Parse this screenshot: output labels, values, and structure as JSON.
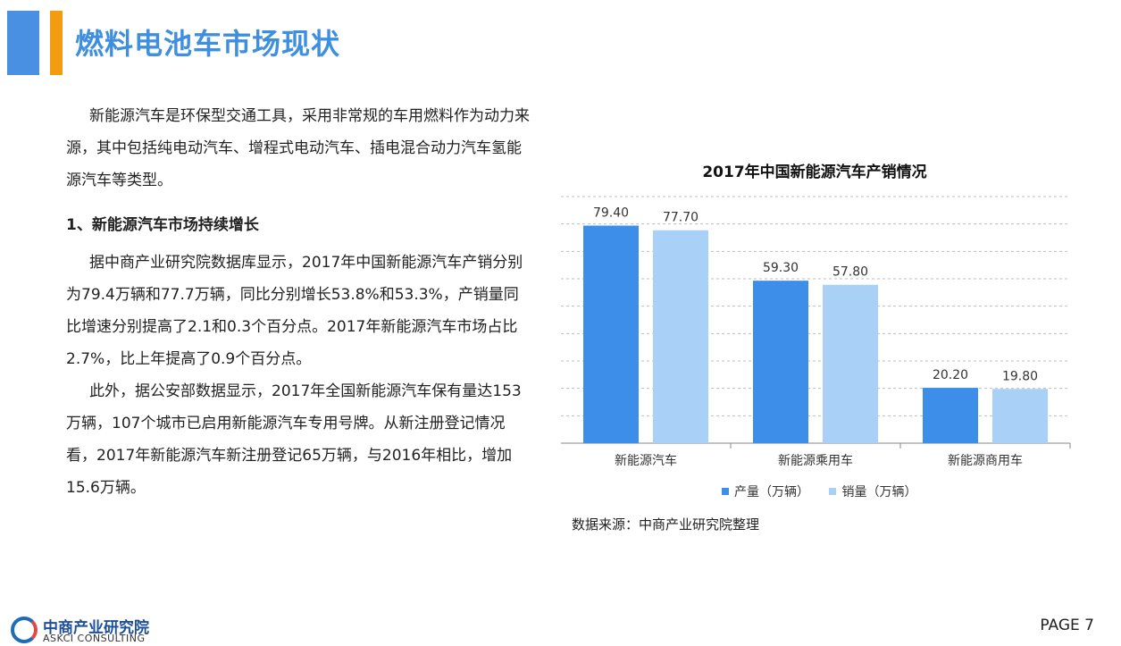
{
  "page": {
    "title": "燃料电池车市场现状",
    "page_label": "PAGE  7"
  },
  "text": {
    "intro": "新能源汽车是环保型交通工具，采用非常规的车用燃料作为动力来源，其中包括纯电动汽车、增程式电动汽车、插电混合动力汽车氢能源汽车等类型。",
    "heading1": "1、新能源汽车市场持续增长",
    "para1": "据中商产业研究院数据库显示，2017年中国新能源汽车产销分别为79.4万辆和77.7万辆，同比分别增长53.8%和53.3%，产销量同比增速分别提高了2.1和0.3个百分点。2017年新能源汽车市场占比2.7%，比上年提高了0.9个百分点。",
    "para2": "此外，据公安部数据显示，2017年全国新能源汽车保有量达153万辆，107个城市已启用新能源汽车专用号牌。从新注册登记情况看，2017年新能源汽车新注册登记65万辆，与2016年相比，增加15.6万辆。"
  },
  "source": "数据来源：中商产业研究院整理",
  "logo": {
    "cn": "中商产业研究院",
    "en": "ASKCI CONSULTING"
  },
  "chart_data": {
    "type": "bar",
    "title": "2017年中国新能源汽车产销情况",
    "categories": [
      "新能源汽车",
      "新能源乘用车",
      "新能源商用车"
    ],
    "series": [
      {
        "name": "产量（万辆）",
        "values": [
          79.4,
          59.3,
          20.2
        ],
        "labels": [
          "79.40",
          "59.30",
          "20.20"
        ],
        "color": "#3d8ee8"
      },
      {
        "name": "销量（万辆）",
        "values": [
          77.7,
          57.8,
          19.8
        ],
        "labels": [
          "77.70",
          "57.80",
          "19.80"
        ],
        "color": "#a9d0f7"
      }
    ],
    "ylim": [
      0,
      90
    ],
    "grid": true,
    "legend": "bottom",
    "xlabel": "",
    "ylabel": ""
  }
}
